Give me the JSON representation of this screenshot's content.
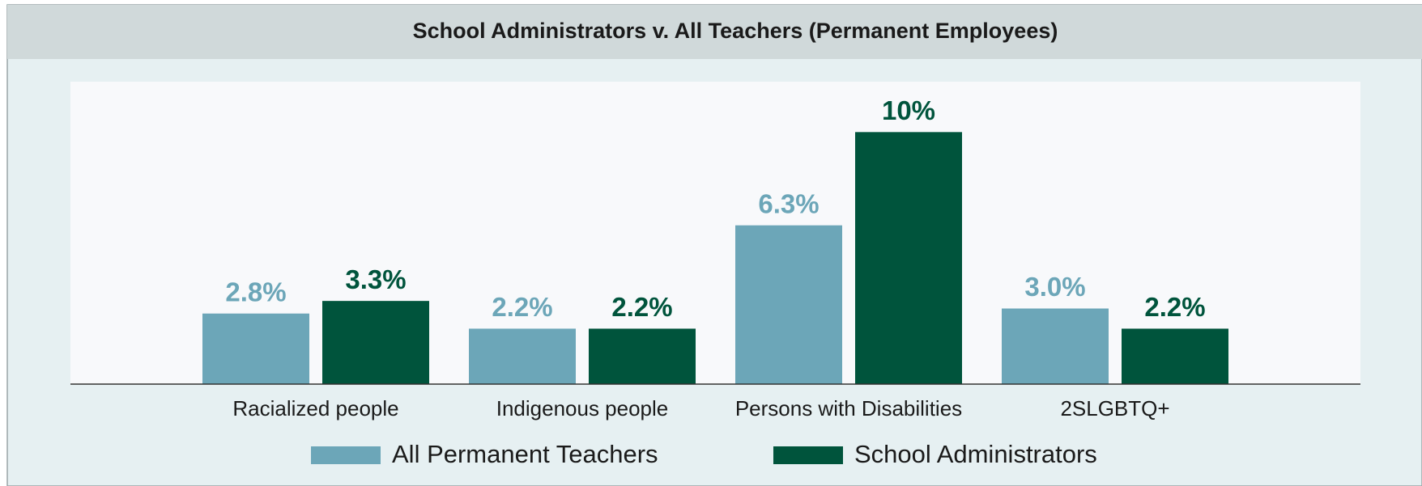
{
  "chart_data": {
    "type": "bar",
    "title": "School Administrators v. All Teachers (Permanent Employees)",
    "categories": [
      "Racialized people",
      "Indigenous people",
      "Persons with Disabilities",
      "2SLGBTQ+"
    ],
    "series": [
      {
        "name": "All Permanent Teachers",
        "color": "#6ca6b8",
        "values": [
          2.8,
          2.2,
          6.3,
          3.0
        ],
        "value_labels": [
          "2.8%",
          "2.2%",
          "6.3%",
          "3.0%"
        ]
      },
      {
        "name": "School Administrators",
        "color": "#00543c",
        "values": [
          3.3,
          2.2,
          10,
          2.2
        ],
        "value_labels": [
          "3.3%",
          "2.2%",
          "10%",
          "2.2%"
        ]
      }
    ],
    "ylim": [
      0,
      12
    ],
    "legend": "bottom"
  }
}
